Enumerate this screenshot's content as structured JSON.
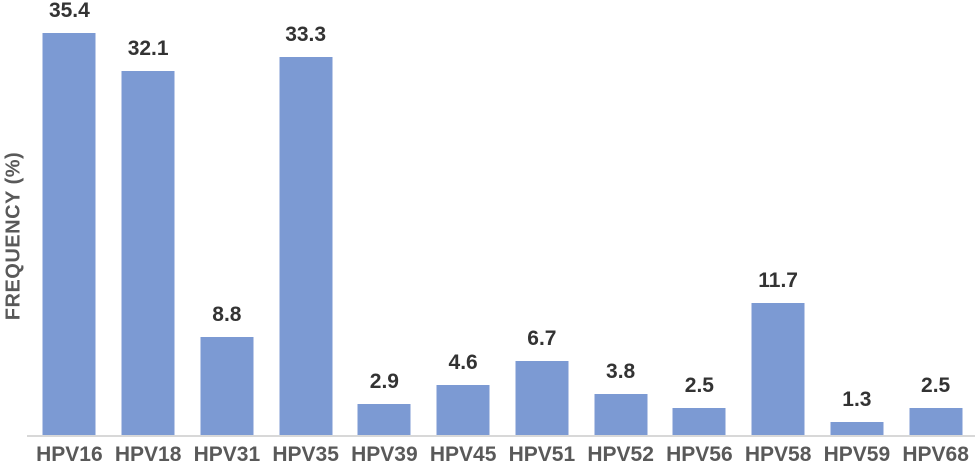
{
  "page": {
    "background": "#FFFFFF"
  },
  "chart_data": {
    "type": "bar",
    "title": "",
    "xlabel": "",
    "ylabel": "FREQUENCY (%)",
    "categories": [
      "HPV16",
      "HPV18",
      "HPV31",
      "HPV35",
      "HPV39",
      "HPV45",
      "HPV51",
      "HPV52",
      "HPV56",
      "HPV58",
      "HPV59",
      "HPV68"
    ],
    "values": [
      35.4,
      32.1,
      8.8,
      33.3,
      2.9,
      4.6,
      6.7,
      3.8,
      2.5,
      11.7,
      1.3,
      2.5
    ],
    "data_labels_shown": true,
    "decimals": 1,
    "ylim": [
      0,
      37
    ],
    "grid": false,
    "legend": false,
    "colors": {
      "bar": "#7C9AD3",
      "axis_line": "#D8D8D8",
      "value_label": "#333333",
      "category_label": "#595959",
      "axis_title": "#595959"
    }
  }
}
